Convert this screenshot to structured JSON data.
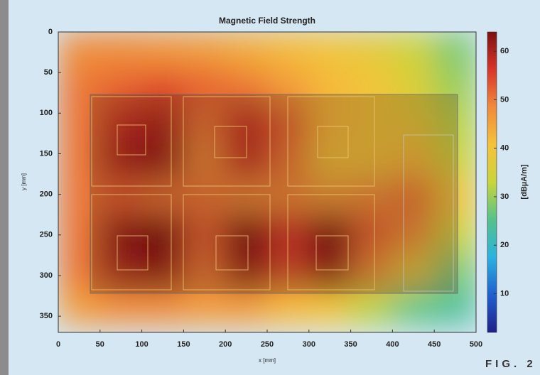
{
  "chart_data": {
    "type": "heatmap",
    "title": "Magnetic Field Strength",
    "x_label": "x [mm]",
    "y_label": "y [mm]",
    "x": [
      25,
      75,
      125,
      175,
      225,
      275,
      325,
      375,
      425,
      475
    ],
    "y": [
      22.5,
      67.5,
      112.5,
      157.5,
      202.5,
      247.5,
      292.5,
      337.5
    ],
    "z": [
      [
        48,
        48,
        47,
        46,
        44,
        42,
        40,
        38,
        34,
        28
      ],
      [
        50,
        52,
        54,
        52,
        50,
        46,
        42,
        40,
        36,
        30
      ],
      [
        50,
        58,
        60,
        50,
        58,
        52,
        42,
        40,
        38,
        32
      ],
      [
        50,
        60,
        62,
        48,
        58,
        50,
        40,
        40,
        42,
        34
      ],
      [
        50,
        52,
        50,
        50,
        48,
        48,
        46,
        48,
        50,
        40
      ],
      [
        50,
        62,
        64,
        52,
        64,
        56,
        64,
        52,
        48,
        34
      ],
      [
        50,
        60,
        62,
        50,
        62,
        54,
        62,
        48,
        38,
        28
      ],
      [
        46,
        48,
        48,
        46,
        46,
        42,
        40,
        32,
        26,
        24
      ]
    ],
    "xlim": [
      0,
      500
    ],
    "xticks": [
      0,
      50,
      100,
      150,
      200,
      250,
      300,
      350,
      400,
      450,
      500
    ],
    "ylim": [
      370,
      0
    ],
    "yticks": [
      0,
      50,
      100,
      150,
      200,
      250,
      300,
      350
    ],
    "colorbar_label": "[dBµA/m]",
    "clim": [
      2,
      64
    ],
    "cticks": [
      10,
      20,
      30,
      40,
      50,
      60
    ],
    "colormap": [
      "#20208a",
      "#1f5fd0",
      "#29b3e0",
      "#55c28a",
      "#c8d63a",
      "#f6c23a",
      "#f08a3a",
      "#d9342a",
      "#7d1010"
    ],
    "figure_label": "FIG. 2"
  }
}
